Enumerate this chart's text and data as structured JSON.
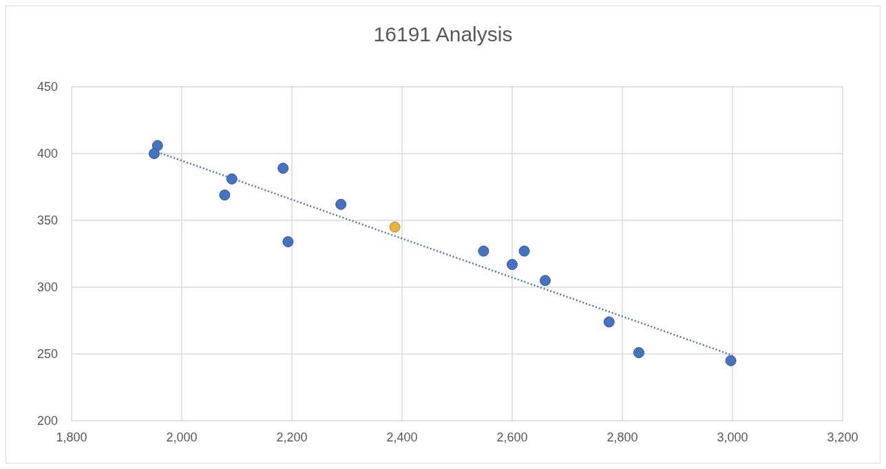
{
  "chart_data": {
    "type": "scatter",
    "title": "16191 Analysis",
    "xlim": [
      1800,
      3200
    ],
    "xticks": [
      {
        "value": 1800,
        "label": "1,800"
      },
      {
        "value": 2000,
        "label": "2,000"
      },
      {
        "value": 2200,
        "label": "2,200"
      },
      {
        "value": 2400,
        "label": "2,400"
      },
      {
        "value": 2600,
        "label": "2,600"
      },
      {
        "value": 2800,
        "label": "2,800"
      },
      {
        "value": 3000,
        "label": "3,000"
      },
      {
        "value": 3200,
        "label": "3,200"
      }
    ],
    "ylim": [
      200,
      450
    ],
    "yticks": [
      200,
      250,
      300,
      350,
      400,
      450
    ],
    "grid": true,
    "marker": "circle",
    "series": [
      {
        "color": "#4472c4",
        "x": [
          1956,
          1950,
          2091,
          2078,
          2184,
          2193,
          2289,
          2548,
          2600,
          2622,
          2660,
          2776,
          2830,
          2997
        ],
        "values": [
          406,
          400,
          381,
          369,
          389,
          334,
          362,
          327,
          317,
          327,
          305,
          274,
          251,
          245
        ]
      },
      {
        "color": "#e8b53a",
        "x": [
          2387
        ],
        "values": [
          345
        ]
      },
      {
        "type": "line",
        "color": "#4472c4",
        "line_style": "dotted",
        "marker": "none",
        "x": [
          1950,
          3000
        ],
        "values": [
          402,
          249
        ]
      }
    ]
  }
}
